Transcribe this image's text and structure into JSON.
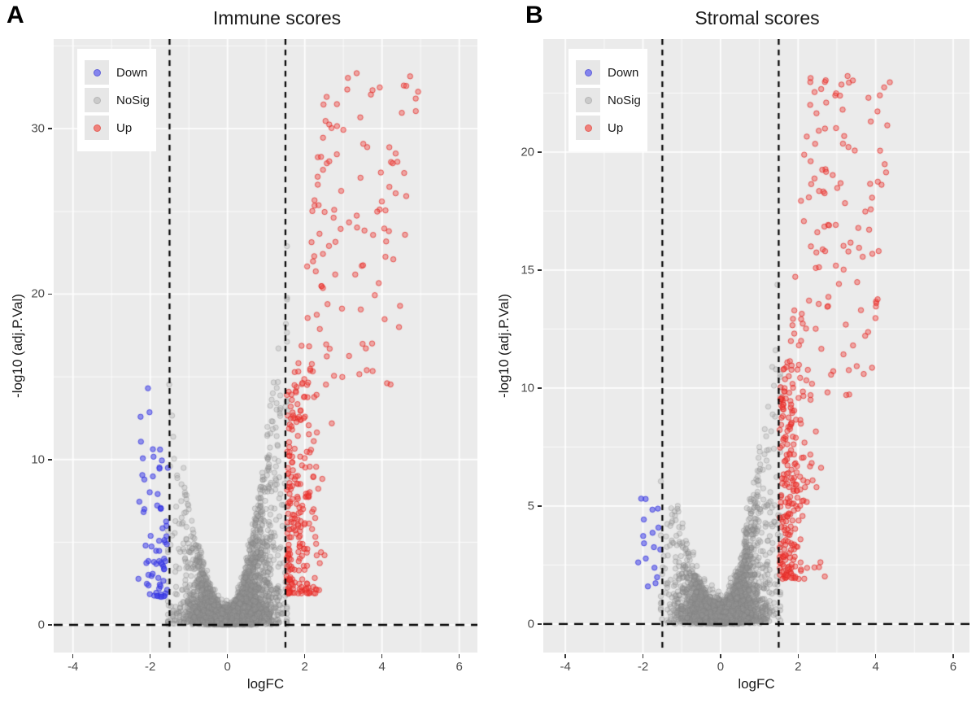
{
  "chart_data": {
    "type": "scatter",
    "figure_type": "volcano-plot",
    "seed": 20,
    "point_radius": 3.2,
    "colors": {
      "panel_bg": "#EBEBEB",
      "grid_major": "rgba(255,255,255,0.95)",
      "grid_minor": "rgba(255,255,255,0.70)",
      "threshold_line": "#000000",
      "tick_text": "#4d4d4d",
      "legend_key_bg": "#e7e7e7"
    },
    "legend_colors": {
      "Down": {
        "fill": "#8585ee",
        "stroke": "#5f5fd8"
      },
      "NoSig": {
        "fill": "#cacaca",
        "stroke": "#b5b5b5"
      },
      "Up": {
        "fill": "#f0827c",
        "stroke": "#e35f58"
      }
    },
    "panels": [
      {
        "panel_label": "A",
        "title": "Immune scores",
        "xlabel": "logFC",
        "ylabel": "-log10 (adj.P.Val)",
        "xlim": [
          -4.5,
          6.47
        ],
        "ylim": [
          -1.67,
          35.42
        ],
        "x_ticks": [
          -4,
          -2,
          0,
          2,
          4,
          6
        ],
        "y_ticks": [
          0,
          10,
          20,
          30
        ],
        "x_minor": [
          -3,
          -1,
          1,
          3,
          5
        ],
        "y_minor": [
          5,
          15,
          25,
          35
        ],
        "vlines": [
          -1.5,
          1.5
        ],
        "hline": 0,
        "legend": [
          "Down",
          "NoSig",
          "Up"
        ],
        "legend_position": "top-left",
        "grid": true,
        "series": [
          {
            "name": "NoSig",
            "fill": "rgba(150,150,150,0.25)",
            "stroke": "rgba(130,130,130,0.35)",
            "clusters": [
              {
                "kind": "volcano_cloud",
                "n": 4200,
                "x_mean": 0.08,
                "x_sd": 0.58,
                "x_clip": 1.54,
                "arm_up": 23,
                "arm_down": 15.5,
                "arm_pow": 1.7,
                "y_pow": 2.4,
                "base_sd": 0.45
              }
            ]
          },
          {
            "name": "Down",
            "fill": "rgba(70,70,235,0.55)",
            "stroke": "rgba(50,50,220,0.75)",
            "clusters": [
              {
                "kind": "band",
                "n": 66,
                "side": -1,
                "x_edge": 1.53,
                "x_sd": 0.33,
                "x_max": 2.6,
                "y_min": 1.7,
                "y_span": 9.0,
                "y_pow": 1.9
              },
              {
                "kind": "spread",
                "n": 6,
                "x_base": -1.8,
                "x_span": -0.45,
                "x_pow": 1.0,
                "y_min": 9.5,
                "y_span": 6.0,
                "xy_corr": 0
              }
            ]
          },
          {
            "name": "Up",
            "fill": "rgba(244,70,64,0.42)",
            "stroke": "rgba(225,40,35,0.70)",
            "clusters": [
              {
                "kind": "band",
                "n": 235,
                "side": 1,
                "x_edge": 1.53,
                "x_sd": 0.42,
                "x_max": 3.0,
                "y_min": 1.9,
                "y_span": 13.5,
                "y_pow": 1.7
              },
              {
                "kind": "spread",
                "n": 115,
                "x_base": 1.75,
                "x_span": 2.6,
                "x_pow": 1.35,
                "y_min": 14.5,
                "y_span": 19.0,
                "xy_corr": 0.8
              }
            ]
          }
        ]
      },
      {
        "panel_label": "B",
        "title": "Stromal scores",
        "xlabel": "logFC",
        "ylabel": "-log10 (adj.P.Val)",
        "xlim": [
          -4.57,
          6.42
        ],
        "ylim": [
          -1.21,
          24.79
        ],
        "x_ticks": [
          -4,
          -2,
          0,
          2,
          4,
          6
        ],
        "y_ticks": [
          0,
          5,
          10,
          15,
          20
        ],
        "x_minor": [
          -3,
          -1,
          1,
          3,
          5
        ],
        "y_minor": [
          2.5,
          7.5,
          12.5,
          17.5,
          22.5
        ],
        "vlines": [
          -1.5,
          1.5
        ],
        "hline": 0,
        "legend": [
          "Down",
          "NoSig",
          "Up"
        ],
        "legend_position": "top-left",
        "grid": true,
        "series": [
          {
            "name": "NoSig",
            "fill": "rgba(150,150,150,0.25)",
            "stroke": "rgba(130,130,130,0.35)",
            "clusters": [
              {
                "kind": "volcano_cloud",
                "n": 3900,
                "x_mean": 0.05,
                "x_sd": 0.55,
                "x_clip": 1.54,
                "arm_up": 15.5,
                "arm_down": 8.5,
                "arm_pow": 1.7,
                "y_pow": 2.5,
                "base_sd": 0.42
              }
            ]
          },
          {
            "name": "Down",
            "fill": "rgba(70,70,235,0.55)",
            "stroke": "rgba(50,50,220,0.75)",
            "clusters": [
              {
                "kind": "band",
                "n": 17,
                "side": -1,
                "x_edge": 1.53,
                "x_sd": 0.28,
                "x_max": 2.25,
                "y_min": 1.5,
                "y_span": 5.2,
                "y_pow": 1.4
              }
            ]
          },
          {
            "name": "Up",
            "fill": "rgba(244,70,64,0.42)",
            "stroke": "rgba(225,40,35,0.70)",
            "clusters": [
              {
                "kind": "band",
                "n": 225,
                "side": 1,
                "x_edge": 1.52,
                "x_sd": 0.38,
                "x_max": 2.9,
                "y_min": 1.9,
                "y_span": 9.2,
                "y_pow": 1.6
              },
              {
                "kind": "spread",
                "n": 130,
                "x_base": 1.7,
                "x_span": 2.2,
                "x_pow": 1.3,
                "y_min": 9.5,
                "y_span": 13.8,
                "xy_corr": 0.6
              }
            ]
          }
        ]
      }
    ]
  }
}
